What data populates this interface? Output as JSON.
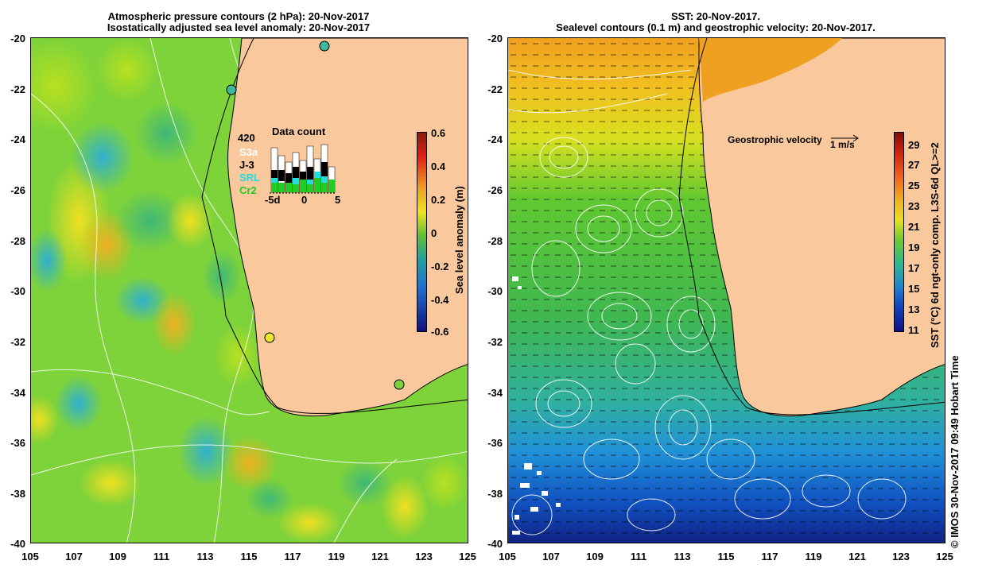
{
  "left_panel": {
    "title_line1": "Atmospheric pressure contours (2 hPa): 20-Nov-2017",
    "title_line2": "Isostatically adjusted sea level anomaly: 20-Nov-2017",
    "y_ticks": [
      "-20",
      "-22",
      "-24",
      "-26",
      "-28",
      "-30",
      "-32",
      "-34",
      "-36",
      "-38",
      "-40"
    ],
    "x_ticks": [
      "105",
      "107",
      "109",
      "111",
      "113",
      "115",
      "117",
      "119",
      "121",
      "123",
      "125"
    ],
    "colorbar": {
      "label": "Sea level anomaly (m)",
      "ticks": [
        "0.6",
        "0.4",
        "0.2",
        "0",
        "-0.2",
        "-0.4",
        "-0.6"
      ],
      "range": [
        -0.6,
        0.6
      ]
    },
    "data_count": {
      "title": "Data count",
      "total": "420",
      "satellites": [
        "S3a",
        "J-3",
        "SRL",
        "Cr2"
      ],
      "sat_colors": [
        "#ffffff",
        "#000000",
        "#22dddd",
        "#22cc22"
      ],
      "axis_ticks": [
        "-5d",
        "0",
        "5"
      ]
    }
  },
  "right_panel": {
    "title_line1": "SST: 20-Nov-2017.",
    "title_line2": "Sealevel contours (0.1 m) and geostrophic velocity: 20-Nov-2017.",
    "y_ticks": [
      "-20",
      "-22",
      "-24",
      "-26",
      "-28",
      "-30",
      "-32",
      "-34",
      "-36",
      "-38",
      "-40"
    ],
    "x_ticks": [
      "105",
      "107",
      "109",
      "111",
      "113",
      "115",
      "117",
      "119",
      "121",
      "123",
      "125"
    ],
    "velocity_label": "Geostrophic velocity",
    "velocity_scale": "1 m/s",
    "colorbar": {
      "label": "SST (°C) 6d ngt-only comp. L3S-6d QL>=2",
      "ticks": [
        "29",
        "27",
        "25",
        "23",
        "21",
        "19",
        "17",
        "15",
        "13",
        "11"
      ],
      "range": [
        11,
        30
      ]
    }
  },
  "credit": "© IMOS 30-Nov-2017 09:49 Hobart Time",
  "colors": {
    "land": "#f9c89d",
    "coast": "#000000"
  }
}
